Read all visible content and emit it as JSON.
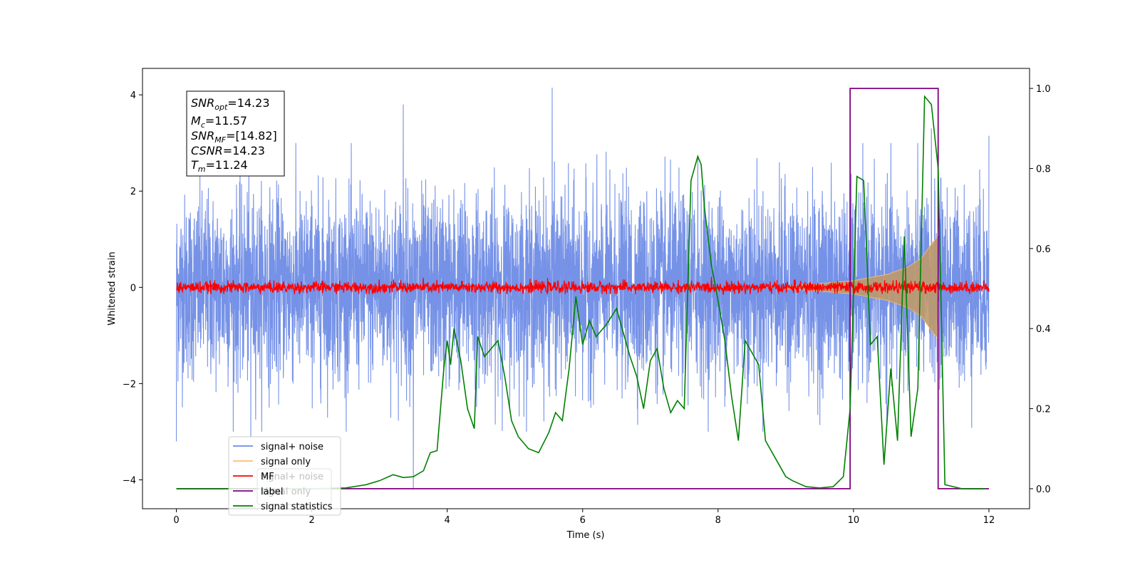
{
  "chart_data": {
    "type": "line",
    "title": "",
    "xlabel": "Time (s)",
    "ylabel": "Whitened strain",
    "xlim": [
      -0.5,
      12.6
    ],
    "ylim": [
      -4.6,
      4.55
    ],
    "y2lim": [
      -0.05,
      1.05
    ],
    "x_ticks": [
      0,
      2,
      4,
      6,
      8,
      10,
      12
    ],
    "y_ticks": [
      -4,
      -2,
      0,
      2,
      4
    ],
    "y2_ticks": [
      0.0,
      0.2,
      0.4,
      0.6,
      0.8,
      1.0
    ],
    "x_tick_labels": [
      "0",
      "2",
      "4",
      "6",
      "8",
      "10",
      "12"
    ],
    "y_tick_labels": [
      "−4",
      "−2",
      "0",
      "2",
      "4"
    ],
    "y2_tick_labels": [
      "0.0",
      "0.2",
      "0.4",
      "0.6",
      "0.8",
      "1.0"
    ],
    "grid": false,
    "annotation": {
      "lines": [
        {
          "var": "SNR",
          "sub": "opt",
          "value": "=14.23"
        },
        {
          "var": "M",
          "sub": "c",
          "value": "=11.57"
        },
        {
          "var": "SNR",
          "sub": "MF",
          "value": "=[14.82]"
        },
        {
          "var": "CSNR",
          "sub": "",
          "value": "=14.23"
        },
        {
          "var": "T",
          "sub": "m",
          "value": "=11.24"
        }
      ]
    },
    "legend": {
      "placement": "lower-left",
      "entries": [
        {
          "label": "signal+ noise",
          "color": "#6f8ce6"
        },
        {
          "label": "signal only",
          "color": "#ffbf66"
        },
        {
          "label": "MF",
          "color": "#ff0000"
        },
        {
          "label": "label",
          "color": "#800080"
        },
        {
          "label": "signal statistics",
          "color": "#008000"
        }
      ],
      "ghost_entries": [
        {
          "label": "signal+ noise"
        },
        {
          "label": "signal only"
        }
      ]
    },
    "series": [
      {
        "name": "signal+ noise",
        "axis": "left",
        "color": "#6f8ce6",
        "x_range": [
          0,
          12
        ],
        "typical_amplitude": 1.0,
        "peaks": [
          [
            0.0,
            -3.2
          ],
          [
            1.1,
            -3.1
          ],
          [
            3.5,
            -4.2
          ],
          [
            3.35,
            3.8
          ],
          [
            5.55,
            4.15
          ],
          [
            7.7,
            2.75
          ],
          [
            9.95,
            2.7
          ],
          [
            11.15,
            3.3
          ],
          [
            12.0,
            3.15
          ]
        ]
      },
      {
        "name": "signal only",
        "axis": "left",
        "color": "#ffbf66",
        "envelope": [
          [
            9.0,
            0.03
          ],
          [
            9.5,
            0.08
          ],
          [
            10.0,
            0.14
          ],
          [
            10.5,
            0.27
          ],
          [
            10.8,
            0.42
          ],
          [
            11.0,
            0.6
          ],
          [
            11.15,
            0.9
          ],
          [
            11.24,
            1.05
          ],
          [
            11.26,
            0.0
          ]
        ]
      },
      {
        "name": "MF",
        "axis": "left",
        "color": "#ff0000",
        "x_range": [
          0,
          12
        ],
        "typical_amplitude": 0.06
      },
      {
        "name": "label",
        "axis": "right",
        "color": "#800080",
        "x": [
          0,
          9.95,
          9.95,
          11.25,
          11.25,
          12.0
        ],
        "y": [
          0,
          0,
          1,
          1,
          0,
          0
        ]
      },
      {
        "name": "signal statistics",
        "axis": "right",
        "color": "#008000",
        "x": [
          0,
          0.5,
          1.0,
          1.5,
          2.0,
          2.5,
          2.8,
          3.0,
          3.2,
          3.35,
          3.5,
          3.65,
          3.75,
          3.85,
          3.95,
          4.0,
          4.05,
          4.1,
          4.2,
          4.3,
          4.4,
          4.45,
          4.55,
          4.65,
          4.75,
          4.85,
          4.95,
          5.05,
          5.2,
          5.35,
          5.5,
          5.6,
          5.7,
          5.8,
          5.9,
          6.0,
          6.1,
          6.2,
          6.35,
          6.5,
          6.6,
          6.7,
          6.8,
          6.9,
          7.0,
          7.1,
          7.2,
          7.3,
          7.4,
          7.5,
          7.6,
          7.65,
          7.7,
          7.75,
          7.8,
          7.9,
          8.0,
          8.1,
          8.2,
          8.3,
          8.4,
          8.5,
          8.6,
          8.7,
          8.8,
          8.9,
          9.0,
          9.1,
          9.3,
          9.5,
          9.7,
          9.85,
          9.95,
          10.05,
          10.15,
          10.25,
          10.35,
          10.45,
          10.55,
          10.65,
          10.75,
          10.85,
          10.95,
          11.05,
          11.15,
          11.25,
          11.35,
          11.6,
          11.95
        ],
        "y": [
          0.0,
          0.0,
          0.0,
          0.0,
          0.0,
          0.002,
          0.01,
          0.02,
          0.035,
          0.028,
          0.03,
          0.045,
          0.09,
          0.095,
          0.3,
          0.37,
          0.31,
          0.4,
          0.32,
          0.2,
          0.15,
          0.38,
          0.33,
          0.35,
          0.37,
          0.28,
          0.17,
          0.13,
          0.1,
          0.09,
          0.14,
          0.19,
          0.17,
          0.3,
          0.48,
          0.36,
          0.42,
          0.38,
          0.41,
          0.45,
          0.39,
          0.33,
          0.28,
          0.2,
          0.32,
          0.35,
          0.25,
          0.19,
          0.22,
          0.2,
          0.77,
          0.8,
          0.83,
          0.81,
          0.7,
          0.56,
          0.47,
          0.37,
          0.23,
          0.12,
          0.37,
          0.34,
          0.31,
          0.12,
          0.09,
          0.06,
          0.03,
          0.02,
          0.005,
          0.002,
          0.005,
          0.03,
          0.2,
          0.78,
          0.77,
          0.36,
          0.38,
          0.06,
          0.3,
          0.12,
          0.63,
          0.13,
          0.25,
          0.98,
          0.96,
          0.8,
          0.01,
          0.0,
          0.0
        ]
      }
    ]
  }
}
